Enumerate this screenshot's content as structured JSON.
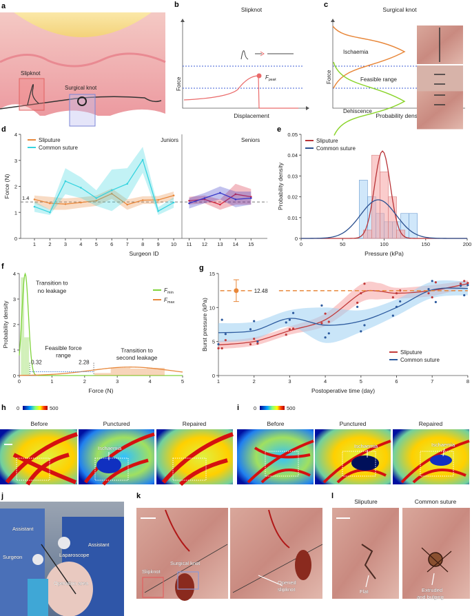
{
  "panels": {
    "a": {
      "label": "a",
      "slipknot": "Slipknot",
      "surgical_knot": "Surgical knot"
    },
    "b": {
      "label": "b",
      "title": "Slipknot",
      "ylabel": "Force",
      "xlabel": "Displacement",
      "fpeak": "F",
      "fpeak_sub": "peak"
    },
    "c": {
      "label": "c",
      "title": "Surgical knot",
      "ylabel": "Force",
      "xlabel": "Probability density",
      "ischaemia": "Ischaemia",
      "feasible": "Feasible range",
      "dehiscence": "Dehiscence"
    },
    "d": {
      "label": "d"
    },
    "e": {
      "label": "e"
    },
    "f": {
      "label": "f"
    },
    "g": {
      "label": "g"
    },
    "h": {
      "label": "h",
      "cbar_min": "0",
      "cbar_max": "500",
      "before": "Before",
      "punctured": "Punctured",
      "repaired": "Repaired",
      "ischaemia": "Ischaemia"
    },
    "i": {
      "label": "i",
      "cbar_min": "0",
      "cbar_max": "500",
      "before": "Before",
      "punctured": "Punctured",
      "repaired": "Repaired",
      "ischaemia1": "Ischaemia",
      "ischaemia2": "Ischaemia"
    },
    "j": {
      "label": "j",
      "assistant1": "Assistant",
      "assistant2": "Assistant",
      "surgeon": "Surgeon",
      "laparoscope": "Laparoscope",
      "operation_area": "Operation area"
    },
    "k": {
      "label": "k",
      "surgical_knot": "Surgical knot",
      "slipknot": "Slipknot",
      "opened1": "Opened",
      "opened2": "slipknot"
    },
    "l": {
      "label": "l",
      "sliputure": "Sliputure",
      "common": "Common suture",
      "flat": "Flat",
      "extruded1": "Extruded",
      "extruded2": "and bulging"
    }
  },
  "colors": {
    "sliputure_junior": "#e8873a",
    "sliputure_senior": "#d7263d",
    "common_junior": "#35d3df",
    "common_senior": "#3434c8",
    "e_slip": "#b83236",
    "e_common": "#2a4f8f",
    "fmin": "#7ed33a",
    "fmax": "#e8873a",
    "g_slip": "#c23a3a",
    "g_common": "#2c5a9e"
  },
  "chart_data": [
    {
      "id": "d",
      "type": "line",
      "xlabel": "Surgeon ID",
      "ylabel": "Force (N)",
      "ylim": [
        0,
        4
      ],
      "xticks": [
        1,
        2,
        3,
        4,
        5,
        6,
        7,
        8,
        9,
        10,
        11,
        12,
        13,
        14,
        15
      ],
      "yticks": [
        0,
        1,
        2,
        3,
        4
      ],
      "reference_line": {
        "value": 1.4,
        "label": "1.4"
      },
      "groups": [
        {
          "label": "Juniors",
          "surgeons": [
            1,
            10
          ]
        },
        {
          "label": "Seniors",
          "surgeons": [
            11,
            15
          ]
        }
      ],
      "legend": [
        "Sliputure",
        "Common suture"
      ],
      "series": [
        {
          "name": "Sliputure",
          "x": [
            1,
            2,
            3,
            4,
            5,
            6,
            7,
            8,
            9,
            10
          ],
          "values": [
            1.5,
            1.35,
            1.32,
            1.38,
            1.45,
            1.72,
            1.3,
            1.47,
            1.48,
            1.65
          ],
          "ci": [
            0.15,
            0.25,
            0.22,
            0.2,
            0.2,
            0.2,
            0.2,
            0.15,
            0.15,
            0.15
          ],
          "color": "sliputure_junior"
        },
        {
          "name": "Sliputure",
          "x": [
            11,
            12,
            13,
            14,
            15
          ],
          "values": [
            1.45,
            1.5,
            1.3,
            1.7,
            1.6
          ],
          "ci": [
            0.15,
            0.15,
            0.2,
            0.4,
            0.3
          ],
          "color": "sliputure_senior"
        },
        {
          "name": "Common suture",
          "x": [
            1,
            2,
            3,
            4,
            5,
            6,
            7,
            8,
            9,
            10
          ],
          "values": [
            1.22,
            1.0,
            2.2,
            1.95,
            1.55,
            1.85,
            2.1,
            3.02,
            1.05,
            1.38
          ],
          "ci": [
            0.2,
            0.1,
            0.5,
            0.4,
            0.3,
            0.8,
            0.6,
            0.5,
            0.15,
            0.2
          ],
          "color": "common_junior"
        },
        {
          "name": "Common suture",
          "x": [
            11,
            12,
            13,
            14,
            15
          ],
          "values": [
            1.35,
            1.55,
            1.75,
            1.5,
            1.55
          ],
          "ci": [
            0.2,
            0.2,
            0.25,
            0.3,
            0.25
          ],
          "color": "common_senior"
        }
      ]
    },
    {
      "id": "e",
      "type": "bar",
      "xlabel": "Pressure (kPa)",
      "ylabel": "Probability density",
      "xlim": [
        0,
        200
      ],
      "ylim": [
        0,
        0.05
      ],
      "xticks": [
        0,
        50,
        100,
        150,
        200
      ],
      "yticks": [
        0,
        0.01,
        0.02,
        0.03,
        0.04,
        0.05
      ],
      "legend": [
        "Sliputure",
        "Common suture"
      ],
      "histograms": [
        {
          "name": "Sliputure",
          "bins": [
            [
              75,
              85,
              0.004
            ],
            [
              85,
              95,
              0.04
            ],
            [
              95,
              105,
              0.032
            ],
            [
              105,
              115,
              0.02
            ],
            [
              115,
              125,
              0.004
            ]
          ],
          "fit": {
            "mean": 98,
            "sd": 9.5
          },
          "color": "e_slip"
        },
        {
          "name": "Common suture",
          "bins": [
            [
              70,
              80,
              0.028
            ],
            [
              80,
              90,
              0.02
            ],
            [
              90,
              100,
              0.012
            ],
            [
              100,
              110,
              0.008
            ],
            [
              110,
              120,
              0.008
            ],
            [
              120,
              130,
              0.012
            ],
            [
              130,
              140,
              0.012
            ]
          ],
          "fit": {
            "mean": 93,
            "sd": 21.5
          },
          "color": "e_common"
        }
      ]
    },
    {
      "id": "f",
      "type": "area",
      "xlabel": "Force (N)",
      "ylabel": "Probability density",
      "xlim": [
        0,
        5
      ],
      "ylim": [
        0,
        4
      ],
      "xticks": [
        0,
        1,
        2,
        3,
        4,
        5
      ],
      "yticks": [
        0,
        1,
        2,
        3,
        4
      ],
      "legend": [
        {
          "name": "F",
          "sub": "min"
        },
        {
          "name": "F",
          "sub": "max"
        }
      ],
      "distributions": [
        {
          "name": "Fmin",
          "bins": [
            [
              0.05,
              0.15,
              3.85
            ],
            [
              0.15,
              0.3,
              1.5
            ]
          ],
          "fit": {
            "mean": 0.18,
            "sd": 0.1
          },
          "color": "fmin"
        },
        {
          "name": "Fmax",
          "bins": [
            [
              2.3,
              2.8,
              0.1
            ],
            [
              2.8,
              3.4,
              0.3
            ],
            [
              3.4,
              3.9,
              0.27
            ],
            [
              3.9,
              4.45,
              0.3
            ]
          ],
          "fit": {
            "mean": 3.4,
            "sd": 1.2
          },
          "color": "fmax"
        }
      ],
      "annotations": {
        "left": "0.32",
        "right": "2.28",
        "range1": "Feasible force",
        "range2": "range",
        "t1a": "Transition to",
        "t1b": "no leakage",
        "t2a": "Transition to",
        "t2b": "second leakage"
      },
      "range": [
        0.32,
        2.28
      ]
    },
    {
      "id": "g",
      "type": "scatter",
      "xlabel": "Postoperative time (day)",
      "ylabel": "Burst pressure (kPa)",
      "xlim": [
        1,
        8
      ],
      "ylim": [
        0,
        15
      ],
      "xticks": [
        1,
        2,
        3,
        4,
        5,
        6,
        7,
        8
      ],
      "yticks": [
        0,
        5,
        10,
        15
      ],
      "legend": [
        "Sliputure",
        "Common suture"
      ],
      "reference": {
        "value": 12.48,
        "label": "12.48",
        "error": 1.6,
        "x": 1.5
      },
      "series": [
        {
          "name": "Sliputure",
          "color": "g_slip",
          "curve_x": [
            1,
            2,
            3,
            4,
            5,
            5.5,
            6,
            7,
            8
          ],
          "curve_y": [
            4.5,
            5.0,
            6.6,
            8.2,
            12.1,
            12.4,
            12.1,
            12.5,
            13.5
          ],
          "band": [
            0.6,
            0.6,
            0.6,
            0.9,
            1.3,
            1.2,
            0.8,
            0.8,
            0.5
          ],
          "points": [
            [
              1,
              4
            ],
            [
              1.1,
              4
            ],
            [
              1.2,
              5.2
            ],
            [
              1.9,
              4.6
            ],
            [
              2,
              5.4
            ],
            [
              2.1,
              4.7
            ],
            [
              2.9,
              6
            ],
            [
              3,
              6.8
            ],
            [
              3.1,
              6.9
            ],
            [
              3.9,
              7.7
            ],
            [
              4,
              9.1
            ],
            [
              4.1,
              7.9
            ],
            [
              4.9,
              10.7
            ],
            [
              5,
              12.1
            ],
            [
              5.1,
              13.5
            ],
            [
              5.9,
              11.5
            ],
            [
              6,
              12.1
            ],
            [
              6.1,
              12.5
            ],
            [
              6.9,
              12.1
            ],
            [
              7,
              11.5
            ],
            [
              7.1,
              13.7
            ],
            [
              7.8,
              13.5
            ],
            [
              7.9,
              13.9
            ],
            [
              8,
              13.6
            ]
          ]
        },
        {
          "name": "Common suture",
          "color": "g_common",
          "curve_x": [
            1,
            2,
            3,
            4,
            5,
            6,
            7,
            8
          ],
          "curve_y": [
            6.3,
            6.6,
            8.4,
            7.4,
            8.0,
            10.0,
            12.6,
            12.8
          ],
          "band": [
            1.4,
            1.3,
            1.2,
            2.6,
            1.6,
            1.2,
            1.2,
            1.0
          ],
          "points": [
            [
              1,
              4.6
            ],
            [
              1.1,
              8.2
            ],
            [
              1.2,
              6.1
            ],
            [
              1.9,
              6.8
            ],
            [
              2,
              8
            ],
            [
              2.1,
              5
            ],
            [
              2.9,
              7.8
            ],
            [
              3,
              8.2
            ],
            [
              3.1,
              9.2
            ],
            [
              3.9,
              10.3
            ],
            [
              4,
              5.6
            ],
            [
              4.1,
              6.2
            ],
            [
              4.9,
              10.1
            ],
            [
              5,
              6.5
            ],
            [
              5.1,
              7.4
            ],
            [
              5.9,
              8.8
            ],
            [
              6,
              10.1
            ],
            [
              6.1,
              10.9
            ],
            [
              6.9,
              12.7
            ],
            [
              7,
              13.9
            ],
            [
              7.1,
              10.8
            ],
            [
              7.8,
              13.2
            ],
            [
              7.9,
              11.8
            ],
            [
              8,
              13.3
            ]
          ]
        }
      ]
    }
  ]
}
